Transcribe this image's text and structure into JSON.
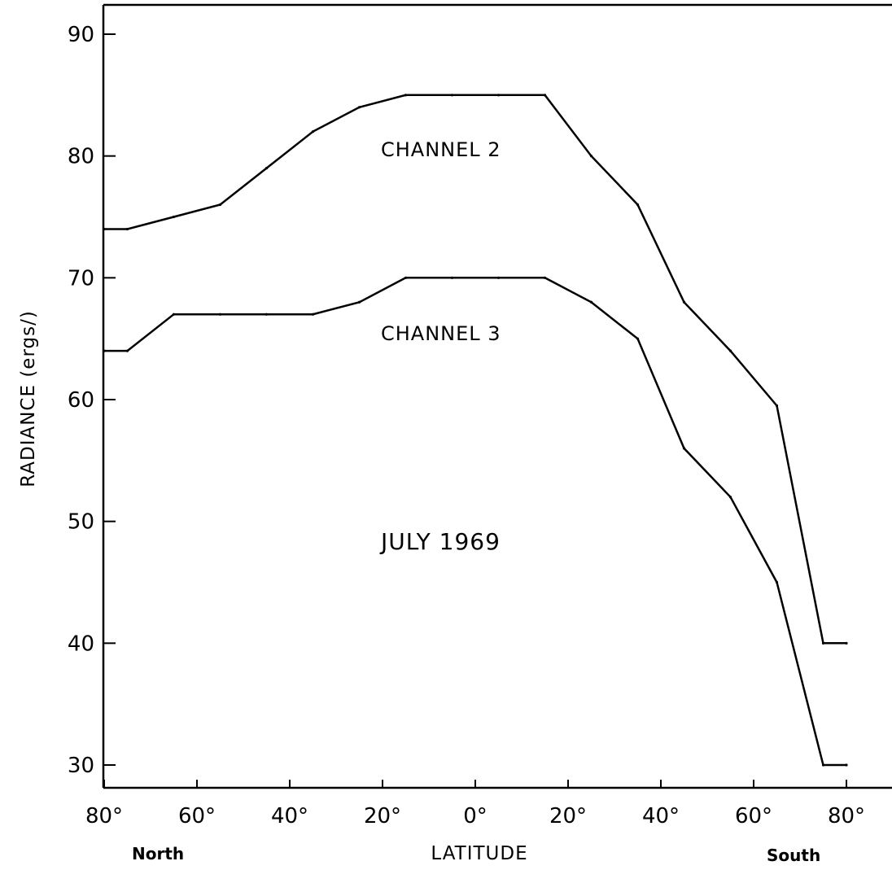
{
  "chart_data": {
    "type": "line",
    "xlabel": "LATITUDE",
    "ylabel": "RADIANCE (ergs/)",
    "x_side_labels": {
      "left": "North",
      "right": "South"
    },
    "xlim": [
      -80,
      80
    ],
    "ylim": [
      30,
      90
    ],
    "x_ticks": [
      -80,
      -60,
      -40,
      -20,
      0,
      20,
      40,
      60,
      80
    ],
    "x_tick_labels": [
      "80°",
      "60°",
      "40°",
      "20°",
      "0°",
      "20°",
      "40°",
      "60°",
      "80°"
    ],
    "y_ticks": [
      30,
      40,
      50,
      60,
      70,
      80,
      90
    ],
    "y_tick_labels": [
      "30",
      "40",
      "50",
      "60",
      "70",
      "80",
      "90"
    ],
    "grid": false,
    "annotation": "JULY 1969",
    "series": [
      {
        "name": "CHANNEL 2",
        "x": [
          -80,
          -75,
          -65,
          -55,
          -45,
          -35,
          -25,
          -15,
          -5,
          5,
          15,
          25,
          35,
          45,
          55,
          65,
          75,
          80
        ],
        "values": [
          74,
          74,
          75,
          76,
          79,
          82,
          84,
          85,
          85,
          85,
          85,
          80,
          76,
          68,
          64,
          59.5,
          40,
          40
        ]
      },
      {
        "name": "CHANNEL 3",
        "x": [
          -80,
          -75,
          -65,
          -55,
          -45,
          -35,
          -25,
          -15,
          -5,
          5,
          15,
          25,
          35,
          45,
          55,
          65,
          75,
          80
        ],
        "values": [
          64,
          64,
          67,
          67,
          67,
          67,
          68,
          70,
          70,
          70,
          70,
          68,
          65,
          56,
          52,
          45,
          30,
          30
        ]
      }
    ],
    "colors": {
      "line": "#000000",
      "background": "#ffffff"
    }
  }
}
